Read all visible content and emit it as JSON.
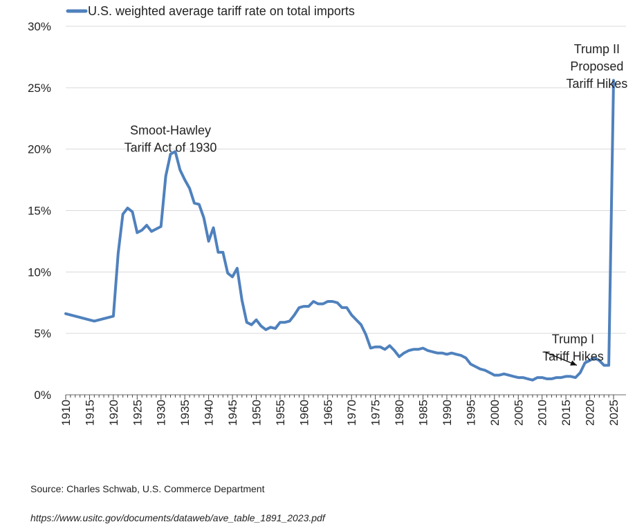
{
  "chart_data": {
    "type": "line",
    "legend": "U.S. weighted average tariff rate on total imports",
    "legend_position": "top-left",
    "grid": "horizontal",
    "ylim": [
      0,
      30
    ],
    "xlim": [
      1910,
      2025
    ],
    "y_ticks": [
      "0%",
      "5%",
      "10%",
      "15%",
      "20%",
      "25%",
      "30%"
    ],
    "y_tick_values": [
      0,
      5,
      10,
      15,
      20,
      25,
      30
    ],
    "x_ticks": [
      "1910",
      "1915",
      "1920",
      "1925",
      "1930",
      "1935",
      "1940",
      "1945",
      "1950",
      "1955",
      "1960",
      "1965",
      "1970",
      "1975",
      "1980",
      "1985",
      "1990",
      "1995",
      "2000",
      "2005",
      "2010",
      "2015",
      "2020",
      "2025"
    ],
    "line_color": "#4f81bd",
    "series": [
      {
        "name": "U.S. weighted average tariff rate on total imports",
        "x": [
          1910,
          1913,
          1916,
          1920,
          1921,
          1922,
          1923,
          1924,
          1925,
          1926,
          1927,
          1928,
          1929,
          1930,
          1931,
          1932,
          1933,
          1934,
          1935,
          1936,
          1937,
          1938,
          1939,
          1940,
          1941,
          1942,
          1943,
          1944,
          1945,
          1946,
          1947,
          1948,
          1949,
          1950,
          1951,
          1952,
          1953,
          1954,
          1955,
          1956,
          1957,
          1958,
          1959,
          1960,
          1961,
          1962,
          1963,
          1964,
          1965,
          1966,
          1967,
          1968,
          1969,
          1970,
          1971,
          1972,
          1973,
          1974,
          1975,
          1976,
          1977,
          1978,
          1979,
          1980,
          1981,
          1982,
          1983,
          1984,
          1985,
          1986,
          1987,
          1988,
          1989,
          1990,
          1991,
          1992,
          1993,
          1994,
          1995,
          1996,
          1997,
          1998,
          1999,
          2000,
          2001,
          2002,
          2003,
          2004,
          2005,
          2006,
          2007,
          2008,
          2009,
          2010,
          2011,
          2012,
          2013,
          2014,
          2015,
          2016,
          2017,
          2018,
          2019,
          2020,
          2021,
          2022,
          2023,
          2024,
          2025
        ],
        "values": [
          6.6,
          6.3,
          6.0,
          6.4,
          11.5,
          14.7,
          15.2,
          14.9,
          13.2,
          13.4,
          13.8,
          13.3,
          13.5,
          13.7,
          17.8,
          19.6,
          19.8,
          18.3,
          17.5,
          16.8,
          15.6,
          15.5,
          14.4,
          12.5,
          13.6,
          11.6,
          11.6,
          9.9,
          9.6,
          10.3,
          7.7,
          5.9,
          5.7,
          6.1,
          5.6,
          5.3,
          5.5,
          5.4,
          5.9,
          5.9,
          6.0,
          6.5,
          7.1,
          7.2,
          7.2,
          7.6,
          7.4,
          7.4,
          7.6,
          7.6,
          7.5,
          7.1,
          7.1,
          6.5,
          6.1,
          5.7,
          4.9,
          3.8,
          3.9,
          3.9,
          3.7,
          4.0,
          3.6,
          3.1,
          3.4,
          3.6,
          3.7,
          3.7,
          3.8,
          3.6,
          3.5,
          3.4,
          3.4,
          3.3,
          3.4,
          3.3,
          3.2,
          3.0,
          2.5,
          2.3,
          2.1,
          2.0,
          1.8,
          1.6,
          1.6,
          1.7,
          1.6,
          1.5,
          1.4,
          1.4,
          1.3,
          1.2,
          1.4,
          1.4,
          1.3,
          1.3,
          1.4,
          1.4,
          1.5,
          1.5,
          1.4,
          1.8,
          2.6,
          2.8,
          3.0,
          2.8,
          2.4,
          2.4,
          25.6
        ]
      }
    ],
    "annotations": [
      {
        "lines": [
          "Smoot-Hawley",
          "Tariff Act of 1930"
        ],
        "x": 1932,
        "y": 21.2
      },
      {
        "lines": [
          "Trump I",
          "Tariff Hikes"
        ],
        "x": 2016.5,
        "y": 4.2
      },
      {
        "lines": [
          "Trump II",
          "Proposed",
          "Tariff Hikes"
        ],
        "x": 2021.5,
        "y": 27.8
      }
    ],
    "arrow": {
      "from": [
        2010.5,
        3.5
      ],
      "to": [
        2017.3,
        2.4
      ]
    }
  },
  "footer": {
    "source": "Source: Charles Schwab, U.S. Commerce Department",
    "url": "https://www.usitc.gov/documents/dataweb/ave_table_1891_2023.pdf"
  }
}
